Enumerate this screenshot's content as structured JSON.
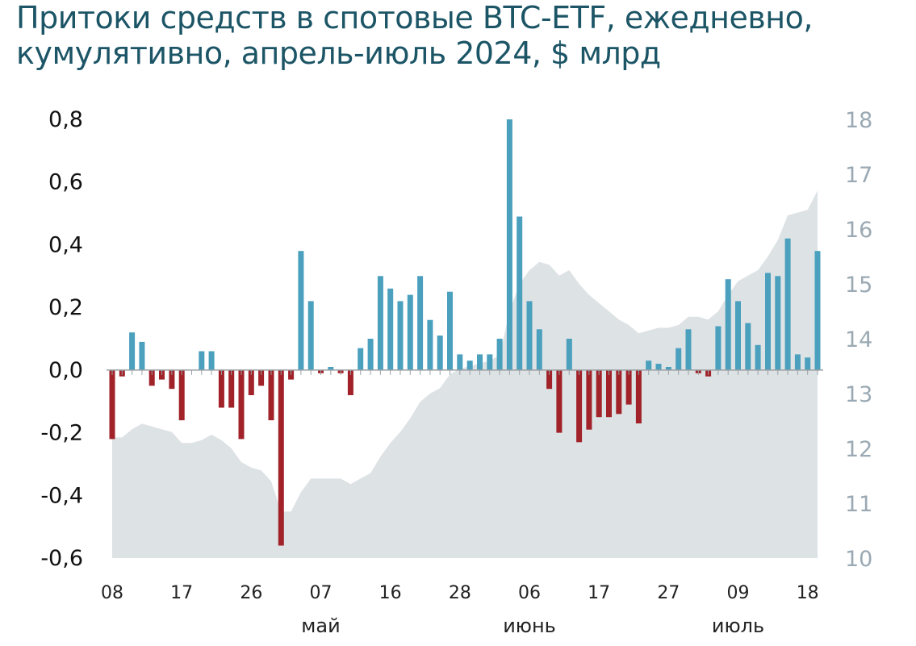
{
  "title": "Притоки средств в спотовые BTC-ETF, ежедневно, кумулятивно, апрель-июль 2024, $ млрд",
  "colors": {
    "positive": "#4aa0bd",
    "negative": "#a12229",
    "area": "#dde2e5",
    "title": "#1c5566",
    "right_axis": "#9aa9b3"
  },
  "chart_data": {
    "type": "bar",
    "title": "Притоки средств в спотовые BTC-ETF, ежедневно, кумулятивно, апрель-июль 2024, $ млрд",
    "ylim": [
      -0.6,
      0.8
    ],
    "y2lim": [
      10,
      18
    ],
    "y_ticks": [
      "0,8",
      "0,6",
      "0,4",
      "0,2",
      "0,0",
      "-0,2",
      "-0,4",
      "-0,6"
    ],
    "y_tick_values": [
      0.8,
      0.6,
      0.4,
      0.2,
      0.0,
      -0.2,
      -0.4,
      -0.6
    ],
    "y2_ticks": [
      "18",
      "17",
      "16",
      "15",
      "14",
      "13",
      "12",
      "11",
      "10"
    ],
    "y2_tick_values": [
      18,
      17,
      16,
      15,
      14,
      13,
      12,
      11,
      10
    ],
    "x_ticks": [
      {
        "label": "08",
        "index": 0
      },
      {
        "label": "17",
        "index": 7
      },
      {
        "label": "26",
        "index": 14
      },
      {
        "label": "07",
        "index": 21
      },
      {
        "label": "16",
        "index": 28
      },
      {
        "label": "28",
        "index": 35
      },
      {
        "label": "06",
        "index": 42
      },
      {
        "label": "17",
        "index": 49
      },
      {
        "label": "27",
        "index": 56
      },
      {
        "label": "09",
        "index": 63
      },
      {
        "label": "18",
        "index": 70
      }
    ],
    "month_labels": [
      {
        "label": "май",
        "index": 21
      },
      {
        "label": "июнь",
        "index": 42
      },
      {
        "label": "июль",
        "index": 63
      }
    ],
    "grid": false,
    "series": [
      {
        "type": "bar",
        "axis": "left",
        "values": [
          -0.22,
          -0.02,
          0.12,
          0.09,
          -0.05,
          -0.03,
          -0.06,
          -0.16,
          0,
          0.06,
          0.06,
          -0.12,
          -0.12,
          -0.22,
          -0.08,
          -0.05,
          -0.16,
          -0.56,
          -0.03,
          0.38,
          0.22,
          -0.01,
          0.01,
          -0.01,
          -0.08,
          0.07,
          0.1,
          0.3,
          0.26,
          0.22,
          0.24,
          0.3,
          0.16,
          0.11,
          0.25,
          0.05,
          0.03,
          0.05,
          0.05,
          0.1,
          0.8,
          0.49,
          0.22,
          0.13,
          -0.06,
          -0.2,
          0.1,
          -0.23,
          -0.19,
          -0.15,
          -0.15,
          -0.14,
          -0.11,
          -0.17,
          0.03,
          0.02,
          0.01,
          0.07,
          0.13,
          -0.01,
          -0.02,
          0.14,
          0.29,
          0.22,
          0.15,
          0.08,
          0.31,
          0.3,
          0.42,
          0.05,
          0.04,
          0.38
        ]
      },
      {
        "type": "area",
        "axis": "right",
        "values": [
          12.2,
          12.2,
          12.35,
          12.45,
          12.4,
          12.35,
          12.3,
          12.1,
          12.1,
          12.15,
          12.25,
          12.15,
          12.0,
          11.75,
          11.65,
          11.6,
          11.4,
          10.85,
          10.85,
          11.2,
          11.45,
          11.45,
          11.45,
          11.45,
          11.35,
          11.45,
          11.55,
          11.85,
          12.1,
          12.3,
          12.55,
          12.85,
          13.0,
          13.1,
          13.35,
          13.45,
          13.5,
          13.55,
          13.6,
          13.7,
          14.5,
          15.0,
          15.25,
          15.4,
          15.35,
          15.15,
          15.25,
          15.0,
          14.8,
          14.65,
          14.5,
          14.35,
          14.25,
          14.1,
          14.15,
          14.2,
          14.2,
          14.25,
          14.4,
          14.4,
          14.35,
          14.5,
          14.8,
          15.05,
          15.15,
          15.25,
          15.5,
          15.8,
          16.25,
          16.3,
          16.35,
          16.7
        ]
      }
    ]
  }
}
